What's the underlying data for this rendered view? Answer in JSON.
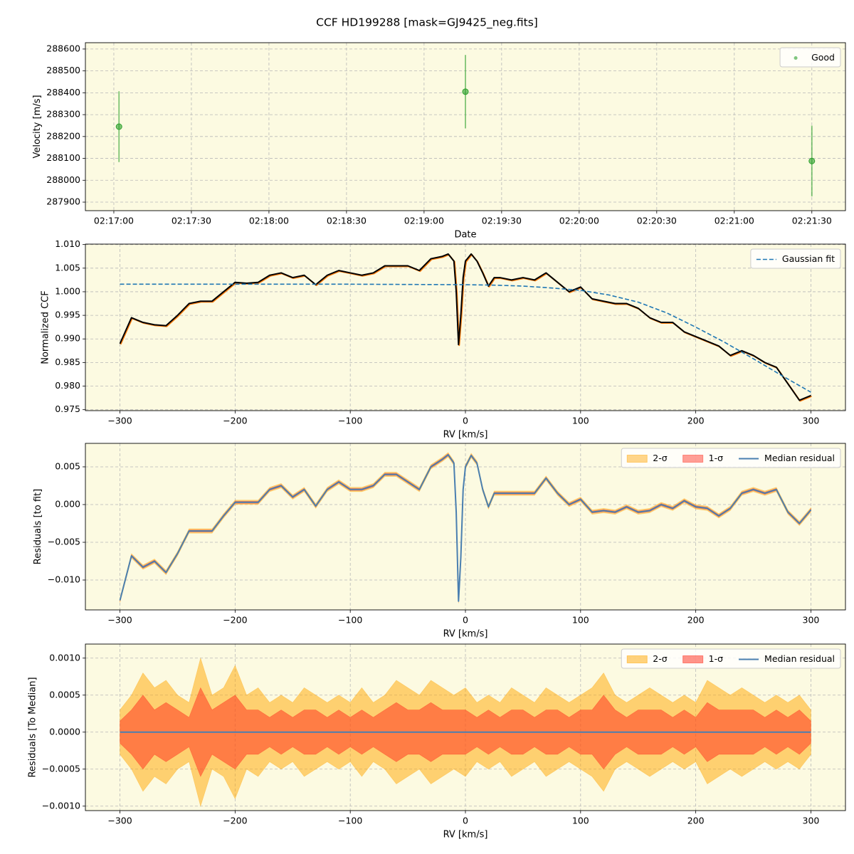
{
  "title": "CCF HD199288 [mask=GJ9425_neg.fits]",
  "chart_data": [
    {
      "type": "scatter",
      "xlabel": "Date",
      "ylabel": "Velocity [m/s]",
      "xlim": [
        "02:16:49",
        "02:21:43"
      ],
      "ylim": [
        287861,
        288629
      ],
      "xticks": [
        "02:17:00",
        "02:17:30",
        "02:18:00",
        "02:18:30",
        "02:19:00",
        "02:19:30",
        "02:20:00",
        "02:20:30",
        "02:21:00",
        "02:21:30"
      ],
      "yticks": [
        287900,
        288000,
        288100,
        288200,
        288300,
        288400,
        288500,
        288600
      ],
      "grid": true,
      "legend": "upper right",
      "legend_columns": 1,
      "background": "#fcfae1",
      "series": [
        {
          "name": "Good",
          "kind": "scatter",
          "color": "#2ca02c",
          "alpha": 0.6,
          "x": [
            "02:17:02",
            "02:19:16",
            "02:21:30"
          ],
          "values": [
            288245,
            288405,
            288088
          ],
          "errors": [
            162,
            168,
            162
          ]
        }
      ]
    },
    {
      "type": "line",
      "xlabel": "RV [km/s]",
      "ylabel": "Normalized CCF",
      "xlim": [
        -330,
        330
      ],
      "ylim": [
        0.9748,
        1.0101
      ],
      "xticks": [
        {
          "value": -300,
          "label": "−300"
        },
        {
          "value": -200,
          "label": "−200"
        },
        {
          "value": -100,
          "label": "−100"
        },
        0,
        100,
        200,
        300
      ],
      "yticks": [
        {
          "value": 0.975,
          "label": "0.975"
        },
        {
          "value": 0.98,
          "label": "0.980"
        },
        {
          "value": 0.985,
          "label": "0.985"
        },
        {
          "value": 0.99,
          "label": "0.990"
        },
        {
          "value": 0.995,
          "label": "0.995"
        },
        {
          "value": 1,
          "label": "1.000"
        },
        {
          "value": 1.005,
          "label": "1.005"
        },
        {
          "value": 1.01,
          "label": "1.010"
        }
      ],
      "grid": true,
      "legend": "upper right",
      "legend_columns": 1,
      "background": "#fcfae1",
      "x": [
        -300,
        -290,
        -280,
        -270,
        -260,
        -250,
        -240,
        -230,
        -220,
        -210,
        -200,
        -190,
        -180,
        -170,
        -160,
        -150,
        -140,
        -130,
        -120,
        -110,
        -100,
        -90,
        -80,
        -70,
        -60,
        -50,
        -40,
        -30,
        -20,
        -15,
        -10,
        -8,
        -6,
        -4,
        -2,
        0,
        5,
        10,
        15,
        20,
        25,
        30,
        40,
        50,
        60,
        70,
        80,
        90,
        100,
        110,
        120,
        130,
        140,
        150,
        160,
        170,
        180,
        190,
        200,
        210,
        220,
        230,
        240,
        250,
        260,
        270,
        280,
        290,
        300
      ],
      "series": [
        {
          "kind": "line",
          "color": "#000000",
          "shadow": "#ff7f0e",
          "values": [
            0.989,
            0.9945,
            0.9935,
            0.993,
            0.9928,
            0.995,
            0.9975,
            0.998,
            0.998,
            1.0,
            1.002,
            1.0018,
            1.002,
            1.0035,
            1.004,
            1.003,
            1.0035,
            1.0015,
            1.0035,
            1.0045,
            1.004,
            1.0035,
            1.004,
            1.0055,
            1.0055,
            1.0055,
            1.0045,
            1.007,
            1.0075,
            1.008,
            1.0065,
            1.0,
            0.9888,
            0.995,
            1.003,
            1.0065,
            1.008,
            1.0065,
            1.004,
            1.0012,
            1.003,
            1.003,
            1.0025,
            1.003,
            1.0025,
            1.004,
            1.002,
            1.0,
            1.001,
            0.9985,
            0.998,
            0.9975,
            0.9975,
            0.9965,
            0.9945,
            0.9935,
            0.9935,
            0.9915,
            0.9905,
            0.9895,
            0.9885,
            0.9865,
            0.9875,
            0.9865,
            0.985,
            0.984,
            0.9805,
            0.977,
            0.978
          ]
        },
        {
          "name": "Gaussian fit",
          "kind": "line",
          "linestyle": "dashed",
          "color": "#1f77b4",
          "x": [
            -300,
            -200,
            -100,
            0,
            25,
            50,
            75,
            100,
            125,
            150,
            175,
            200,
            225,
            250,
            275,
            300
          ],
          "values": [
            1.0016,
            1.0016,
            1.0016,
            1.0015,
            1.0014,
            1.0012,
            1.0008,
            1.0003,
            0.9993,
            0.9978,
            0.9955,
            0.9925,
            0.9893,
            0.9858,
            0.9822,
            0.9787
          ]
        }
      ]
    },
    {
      "type": "line",
      "xlabel": "RV [km/s]",
      "ylabel": "Residuals [to fit]",
      "xlim": [
        -330,
        330
      ],
      "ylim": [
        -0.01396,
        0.00811
      ],
      "xticks": [
        {
          "value": -300,
          "label": "−300"
        },
        {
          "value": -200,
          "label": "−200"
        },
        {
          "value": -100,
          "label": "−100"
        },
        0,
        100,
        200,
        300
      ],
      "yticks": [
        {
          "value": -0.01,
          "label": "−0.010"
        },
        {
          "value": -0.005,
          "label": "−0.005"
        },
        {
          "value": 0,
          "label": "0.000"
        },
        {
          "value": 0.005,
          "label": "0.005"
        }
      ],
      "grid": true,
      "legend": "upper right",
      "legend_columns": 3,
      "background": "#fcfae1",
      "x": [
        -300,
        -290,
        -280,
        -270,
        -260,
        -250,
        -240,
        -230,
        -220,
        -210,
        -200,
        -190,
        -180,
        -170,
        -160,
        -150,
        -140,
        -130,
        -120,
        -110,
        -100,
        -90,
        -80,
        -70,
        -60,
        -50,
        -40,
        -30,
        -20,
        -15,
        -10,
        -8,
        -6,
        -4,
        -2,
        0,
        5,
        10,
        15,
        20,
        25,
        30,
        40,
        50,
        60,
        70,
        80,
        90,
        100,
        110,
        120,
        130,
        140,
        150,
        160,
        170,
        180,
        190,
        200,
        210,
        220,
        230,
        240,
        250,
        260,
        270,
        280,
        290,
        300
      ],
      "series": [
        {
          "name": "2-σ",
          "kind": "band",
          "color": "#ffa500",
          "alpha": 0.45,
          "error": 0.0003
        },
        {
          "name": "1-σ",
          "kind": "band",
          "color": "#ff2a1a",
          "alpha": 0.45,
          "error": 0.00015
        },
        {
          "name": "Median residual",
          "kind": "line",
          "color": "#4a7fb0",
          "values": [
            -0.0127,
            -0.0068,
            -0.0083,
            -0.0075,
            -0.009,
            -0.0065,
            -0.0035,
            -0.0035,
            -0.0035,
            -0.0015,
            0.0003,
            0.0003,
            0.0003,
            0.002,
            0.0025,
            0.001,
            0.002,
            -0.0002,
            0.002,
            0.003,
            0.002,
            0.002,
            0.0025,
            0.004,
            0.004,
            0.003,
            0.002,
            0.005,
            0.006,
            0.0066,
            0.0055,
            -0.001,
            -0.0128,
            -0.007,
            0.002,
            0.005,
            0.0065,
            0.0055,
            0.002,
            -0.0003,
            0.0015,
            0.0015,
            0.0015,
            0.0015,
            0.0015,
            0.0035,
            0.0015,
            0.0,
            0.0007,
            -0.001,
            -0.0008,
            -0.001,
            -0.0003,
            -0.001,
            -0.0008,
            0.0,
            -0.0005,
            0.0005,
            -0.0003,
            -0.0005,
            -0.0015,
            -0.0005,
            0.0015,
            0.002,
            0.0015,
            0.002,
            -0.001,
            -0.0025,
            -0.0007
          ]
        }
      ]
    },
    {
      "type": "line",
      "xlabel": "RV [km/s]",
      "ylabel": "Residuals [To Median]",
      "xlim": [
        -330,
        330
      ],
      "ylim": [
        -0.00106,
        0.00119
      ],
      "xticks": [
        {
          "value": -300,
          "label": "−300"
        },
        {
          "value": -200,
          "label": "−200"
        },
        {
          "value": -100,
          "label": "−100"
        },
        0,
        100,
        200,
        300
      ],
      "yticks": [
        {
          "value": -0.001,
          "label": "−0.0010"
        },
        {
          "value": -0.0005,
          "label": "−0.0005"
        },
        {
          "value": 0,
          "label": "0.0000"
        },
        {
          "value": 0.0005,
          "label": "0.0005"
        },
        {
          "value": 0.001,
          "label": "0.0010"
        }
      ],
      "grid": true,
      "legend": "upper right",
      "legend_columns": 3,
      "background": "#fcfae1",
      "x": [
        -300,
        -290,
        -280,
        -270,
        -260,
        -250,
        -240,
        -230,
        -220,
        -210,
        -200,
        -190,
        -180,
        -170,
        -160,
        -150,
        -140,
        -130,
        -120,
        -110,
        -100,
        -90,
        -80,
        -70,
        -60,
        -50,
        -40,
        -30,
        -20,
        -10,
        0,
        10,
        20,
        30,
        40,
        50,
        60,
        70,
        80,
        90,
        100,
        110,
        120,
        130,
        140,
        150,
        160,
        170,
        180,
        190,
        200,
        210,
        220,
        230,
        240,
        250,
        260,
        270,
        280,
        290,
        300
      ],
      "series": [
        {
          "name": "2-σ",
          "kind": "band",
          "color": "#ffa500",
          "alpha": 0.5,
          "errors": [
            0.0003,
            0.0005,
            0.0008,
            0.0006,
            0.0007,
            0.0005,
            0.0004,
            0.001,
            0.0005,
            0.0006,
            0.0009,
            0.0005,
            0.0006,
            0.0004,
            0.0005,
            0.0004,
            0.0006,
            0.0005,
            0.0004,
            0.0005,
            0.0004,
            0.0006,
            0.0004,
            0.0005,
            0.0007,
            0.0006,
            0.0005,
            0.0007,
            0.0006,
            0.0005,
            0.0006,
            0.0004,
            0.0005,
            0.0004,
            0.0006,
            0.0005,
            0.0004,
            0.0006,
            0.0005,
            0.0004,
            0.0005,
            0.0006,
            0.0008,
            0.0005,
            0.0004,
            0.0005,
            0.0006,
            0.0005,
            0.0004,
            0.0005,
            0.0004,
            0.0007,
            0.0006,
            0.0005,
            0.0006,
            0.0005,
            0.0004,
            0.0005,
            0.0004,
            0.0005,
            0.0003
          ]
        },
        {
          "name": "1-σ",
          "kind": "band",
          "color": "#ff2a1a",
          "alpha": 0.5,
          "errors": [
            0.00015,
            0.0003,
            0.0005,
            0.0003,
            0.0004,
            0.0003,
            0.0002,
            0.0006,
            0.0003,
            0.0004,
            0.0005,
            0.0003,
            0.0003,
            0.0002,
            0.0003,
            0.0002,
            0.0003,
            0.0003,
            0.0002,
            0.0003,
            0.0002,
            0.0003,
            0.0002,
            0.0003,
            0.0004,
            0.0003,
            0.0003,
            0.0004,
            0.0003,
            0.0003,
            0.0003,
            0.0002,
            0.0003,
            0.0002,
            0.0003,
            0.0003,
            0.0002,
            0.0003,
            0.0003,
            0.0002,
            0.0003,
            0.0003,
            0.0005,
            0.0003,
            0.0002,
            0.0003,
            0.0003,
            0.0003,
            0.0002,
            0.0003,
            0.0002,
            0.0004,
            0.0003,
            0.0003,
            0.0003,
            0.0003,
            0.0002,
            0.0003,
            0.0002,
            0.0003,
            0.00015
          ]
        },
        {
          "name": "Median residual",
          "kind": "line",
          "color": "#4a7fb0",
          "values": [
            0,
            0,
            0,
            0,
            0,
            0,
            0,
            0,
            0,
            0,
            0,
            0,
            0,
            0,
            0,
            0,
            0,
            0,
            0,
            0,
            0,
            0,
            0,
            0,
            0,
            0,
            0,
            0,
            0,
            0,
            0,
            0,
            0,
            0,
            0,
            0,
            0,
            0,
            0,
            0,
            0,
            0,
            0,
            0,
            0,
            0,
            0,
            0,
            0,
            0,
            0,
            0,
            0,
            0,
            0,
            0,
            0,
            0,
            0,
            0,
            0
          ]
        }
      ]
    }
  ]
}
